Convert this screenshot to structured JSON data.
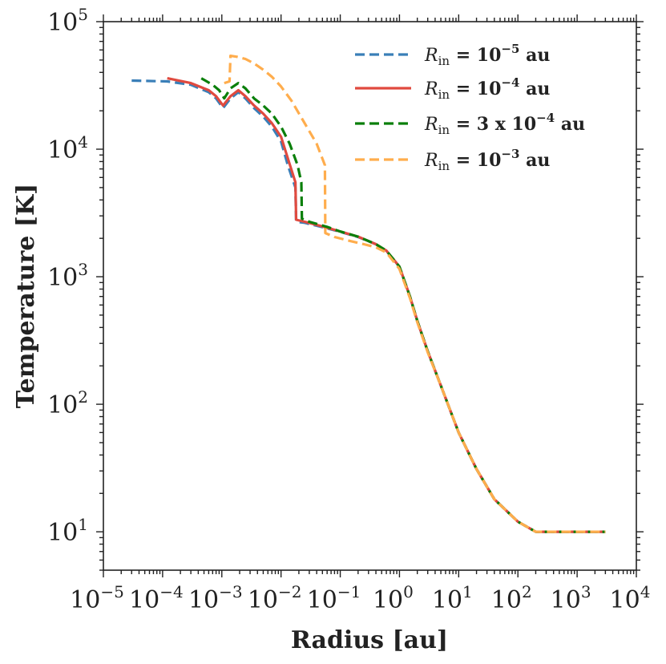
{
  "chart_data": {
    "type": "line",
    "xlabel": "Radius [au]",
    "ylabel": "Temperature [K]",
    "xscale": "log",
    "yscale": "log",
    "xlim": [
      1e-05,
      10000.0
    ],
    "ylim": [
      5,
      100000.0
    ],
    "x_ticks": [
      {
        "base": "10",
        "exp": "−5"
      },
      {
        "base": "10",
        "exp": "−4"
      },
      {
        "base": "10",
        "exp": "−3"
      },
      {
        "base": "10",
        "exp": "−2"
      },
      {
        "base": "10",
        "exp": "−1"
      },
      {
        "base": "10",
        "exp": "0"
      },
      {
        "base": "10",
        "exp": "1"
      },
      {
        "base": "10",
        "exp": "2"
      },
      {
        "base": "10",
        "exp": "3"
      },
      {
        "base": "10",
        "exp": "4"
      }
    ],
    "y_ticks": [
      {
        "base": "10",
        "exp": "1"
      },
      {
        "base": "10",
        "exp": "2"
      },
      {
        "base": "10",
        "exp": "3"
      },
      {
        "base": "10",
        "exp": "4"
      },
      {
        "base": "10",
        "exp": "5"
      }
    ],
    "legend_position": "top-right",
    "series": [
      {
        "name": "R_in = 10^-5 au",
        "legend": {
          "symbol": "R",
          "sub": "in",
          "pre": " = 10",
          "exp": "−5",
          "post": " au"
        },
        "color": "#3a7fb8",
        "dash": "dashed",
        "z": 1,
        "x": [
          3e-05,
          0.00012,
          0.0003,
          0.0006,
          0.0008,
          0.00105,
          0.0014,
          0.0019,
          0.0025,
          0.0035,
          0.005,
          0.007,
          0.01,
          0.013,
          0.0175,
          0.018,
          0.025,
          0.05,
          0.1,
          0.2,
          0.4,
          0.6,
          1,
          1.5,
          2,
          3,
          5,
          10,
          20,
          40,
          100,
          200,
          3000
        ],
        "y": [
          34500,
          34000,
          32000,
          28000,
          25000,
          21000,
          25000,
          28000,
          25000,
          21000,
          18000,
          15000,
          11500,
          7500,
          5000,
          2700,
          2650,
          2450,
          2250,
          2050,
          1800,
          1600,
          1200,
          700,
          450,
          260,
          140,
          60,
          31,
          18,
          12,
          10,
          10
        ]
      },
      {
        "name": "R_in = 10^-4 au",
        "legend": {
          "symbol": "R",
          "sub": "in",
          "pre": " = 10",
          "exp": "−4",
          "post": " au"
        },
        "color": "#e04a3f",
        "dash": "solid",
        "z": 2,
        "x": [
          0.00012,
          0.0003,
          0.0006,
          0.0008,
          0.00105,
          0.0014,
          0.0019,
          0.0025,
          0.0035,
          0.005,
          0.007,
          0.01,
          0.013,
          0.0175,
          0.018,
          0.025,
          0.05,
          0.1,
          0.2,
          0.4,
          0.6,
          1,
          1.5,
          2,
          3,
          5,
          10,
          20,
          40,
          100,
          200,
          3000
        ],
        "y": [
          36000,
          33000,
          29000,
          26000,
          22000,
          26000,
          29000,
          26000,
          22000,
          19000,
          16000,
          12500,
          8500,
          5500,
          2800,
          2700,
          2480,
          2260,
          2060,
          1800,
          1600,
          1200,
          700,
          450,
          260,
          140,
          60,
          31,
          18,
          12,
          10,
          10
        ]
      },
      {
        "name": "R_in = 3 x 10^-4 au",
        "legend": {
          "symbol": "R",
          "sub": "in",
          "pre": " = 3 x 10",
          "exp": "−4",
          "post": " au"
        },
        "color": "#0a7f0a",
        "dash": "dashed",
        "z": 3,
        "x": [
          0.00045,
          0.0007,
          0.0009,
          0.0011,
          0.0014,
          0.0019,
          0.0025,
          0.0035,
          0.005,
          0.007,
          0.01,
          0.014,
          0.019,
          0.022,
          0.0225,
          0.03,
          0.06,
          0.1,
          0.2,
          0.4,
          0.6,
          1,
          1.5,
          2,
          3,
          5,
          10,
          20,
          40,
          100,
          200,
          3000
        ],
        "y": [
          36000,
          32000,
          29000,
          25000,
          30000,
          33000,
          30000,
          25000,
          22000,
          19000,
          15000,
          11000,
          7500,
          5500,
          2850,
          2700,
          2460,
          2260,
          2060,
          1800,
          1600,
          1200,
          700,
          450,
          260,
          140,
          60,
          31,
          18,
          12,
          10,
          10
        ]
      },
      {
        "name": "R_in = 10^-3 au",
        "legend": {
          "symbol": "R",
          "sub": "in",
          "pre": " = 10",
          "exp": "−3",
          "post": " au"
        },
        "color": "#ffad4d",
        "dash": "dashed",
        "z": 4,
        "x": [
          0.0011,
          0.00135,
          0.0014,
          0.0018,
          0.0025,
          0.0035,
          0.005,
          0.007,
          0.01,
          0.015,
          0.025,
          0.04,
          0.055,
          0.056,
          0.08,
          0.15,
          0.25,
          0.4,
          0.6,
          1,
          1.5,
          2,
          3,
          5,
          10,
          20,
          40,
          100,
          200,
          3000
        ],
        "y": [
          33000,
          34000,
          54000,
          53000,
          51000,
          47000,
          42000,
          37000,
          31000,
          24000,
          16000,
          11000,
          7500,
          2200,
          2050,
          1900,
          1800,
          1700,
          1550,
          1150,
          680,
          440,
          255,
          140,
          60,
          31,
          18,
          12,
          10,
          10
        ]
      }
    ]
  }
}
